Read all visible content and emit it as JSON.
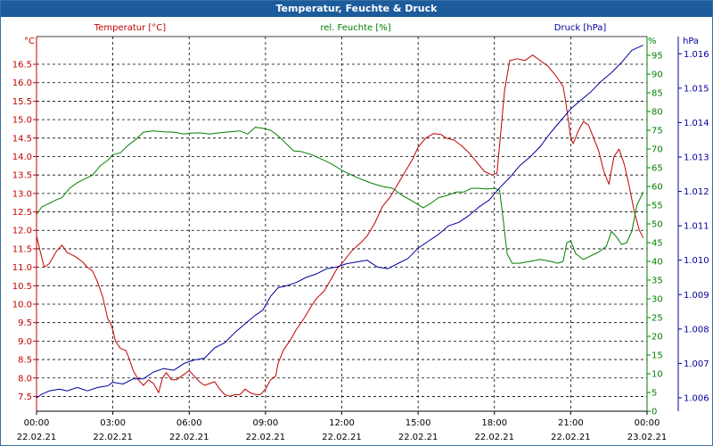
{
  "window": {
    "title": "Temperatur, Feuchte & Druck"
  },
  "chart_data": {
    "type": "line",
    "title": "Temperatur, Feuchte & Druck",
    "grid": true,
    "legend_position": "top",
    "x_ticks": [
      {
        "time": "00:00",
        "date": "22.02.21"
      },
      {
        "time": "03:00",
        "date": "22.02.21"
      },
      {
        "time": "06:00",
        "date": "22.02.21"
      },
      {
        "time": "09:00",
        "date": "22.02.21"
      },
      {
        "time": "12:00",
        "date": "22.02.21"
      },
      {
        "time": "15:00",
        "date": "22.02.21"
      },
      {
        "time": "18:00",
        "date": "22.02.21"
      },
      {
        "time": "21:00",
        "date": "22.02.21"
      },
      {
        "time": "00:00",
        "date": "23.02.21"
      }
    ],
    "x_unit": "hours",
    "xlim": [
      0,
      24
    ],
    "axes": {
      "temperature": {
        "unit_label": "°C",
        "ylim": [
          7.1,
          17.25
        ],
        "ticks": [
          "7.5",
          "8.0",
          "8.5",
          "9.0",
          "9.5",
          "10.0",
          "10.5",
          "11.0",
          "11.5",
          "12.0",
          "12.5",
          "13.0",
          "13.5",
          "14.0",
          "14.5",
          "15.0",
          "15.5",
          "16.0",
          "16.5"
        ],
        "color": "#c00000"
      },
      "humidity": {
        "unit_label": "%",
        "ylim": [
          0,
          100
        ],
        "ticks": [
          "0",
          "5",
          "10",
          "15",
          "20",
          "25",
          "30",
          "35",
          "40",
          "45",
          "50",
          "55",
          "60",
          "65",
          "70",
          "75",
          "80",
          "85",
          "90",
          "95"
        ],
        "color": "#008000"
      },
      "pressure": {
        "unit_label": "hPa",
        "ylim": [
          1005.61,
          1016.5
        ],
        "ticks": [
          "1.006",
          "1.007",
          "1.008",
          "1.009",
          "1.010",
          "1.011",
          "1.012",
          "1.013",
          "1.014",
          "1.015",
          "1.016"
        ],
        "color": "#00009c"
      }
    },
    "series": [
      {
        "name": "Temperatur [°C]",
        "axis": "temperature",
        "color": "#c00000",
        "points": [
          [
            0,
            11.85
          ],
          [
            0.1,
            11.55
          ],
          [
            0.3,
            11.0
          ],
          [
            0.5,
            11.1
          ],
          [
            0.8,
            11.45
          ],
          [
            1.0,
            11.6
          ],
          [
            1.2,
            11.4
          ],
          [
            1.5,
            11.3
          ],
          [
            1.8,
            11.15
          ],
          [
            2.0,
            11.0
          ],
          [
            2.2,
            10.9
          ],
          [
            2.4,
            10.6
          ],
          [
            2.6,
            10.2
          ],
          [
            2.8,
            9.6
          ],
          [
            2.9,
            9.5
          ],
          [
            3.0,
            9.3
          ],
          [
            3.1,
            9.0
          ],
          [
            3.3,
            8.8
          ],
          [
            3.5,
            8.75
          ],
          [
            3.6,
            8.6
          ],
          [
            3.8,
            8.2
          ],
          [
            4.0,
            7.95
          ],
          [
            4.2,
            7.8
          ],
          [
            4.4,
            7.95
          ],
          [
            4.6,
            7.85
          ],
          [
            4.8,
            7.6
          ],
          [
            4.95,
            8.0
          ],
          [
            5.1,
            8.15
          ],
          [
            5.3,
            7.95
          ],
          [
            5.5,
            7.95
          ],
          [
            5.7,
            8.05
          ],
          [
            5.9,
            8.15
          ],
          [
            6.0,
            8.2
          ],
          [
            6.2,
            8.05
          ],
          [
            6.4,
            7.9
          ],
          [
            6.6,
            7.8
          ],
          [
            6.8,
            7.85
          ],
          [
            7.0,
            7.9
          ],
          [
            7.2,
            7.7
          ],
          [
            7.4,
            7.55
          ],
          [
            7.6,
            7.5
          ],
          [
            7.8,
            7.55
          ],
          [
            8.0,
            7.55
          ],
          [
            8.2,
            7.7
          ],
          [
            8.4,
            7.6
          ],
          [
            8.6,
            7.55
          ],
          [
            8.8,
            7.55
          ],
          [
            9.0,
            7.7
          ],
          [
            9.2,
            7.95
          ],
          [
            9.4,
            8.05
          ],
          [
            9.5,
            8.4
          ],
          [
            9.7,
            8.75
          ],
          [
            10.0,
            9.05
          ],
          [
            10.2,
            9.3
          ],
          [
            10.5,
            9.6
          ],
          [
            10.8,
            9.95
          ],
          [
            11.0,
            10.15
          ],
          [
            11.3,
            10.35
          ],
          [
            11.6,
            10.7
          ],
          [
            11.8,
            10.95
          ],
          [
            12.0,
            11.1
          ],
          [
            12.4,
            11.45
          ],
          [
            12.8,
            11.7
          ],
          [
            13.0,
            11.85
          ],
          [
            13.3,
            12.2
          ],
          [
            13.6,
            12.65
          ],
          [
            13.9,
            12.9
          ],
          [
            14.2,
            13.25
          ],
          [
            14.5,
            13.6
          ],
          [
            14.8,
            13.95
          ],
          [
            15.0,
            14.25
          ],
          [
            15.3,
            14.5
          ],
          [
            15.6,
            14.62
          ],
          [
            15.9,
            14.6
          ],
          [
            16.1,
            14.5
          ],
          [
            16.4,
            14.45
          ],
          [
            16.7,
            14.3
          ],
          [
            17.0,
            14.1
          ],
          [
            17.3,
            13.85
          ],
          [
            17.6,
            13.6
          ],
          [
            17.9,
            13.5
          ],
          [
            18.1,
            13.55
          ],
          [
            18.2,
            14.3
          ],
          [
            18.4,
            15.8
          ],
          [
            18.6,
            16.6
          ],
          [
            18.9,
            16.65
          ],
          [
            19.2,
            16.6
          ],
          [
            19.5,
            16.75
          ],
          [
            19.8,
            16.6
          ],
          [
            20.1,
            16.45
          ],
          [
            20.4,
            16.2
          ],
          [
            20.7,
            15.9
          ],
          [
            20.8,
            15.5
          ],
          [
            21.0,
            14.5
          ],
          [
            21.1,
            14.35
          ],
          [
            21.3,
            14.7
          ],
          [
            21.5,
            14.95
          ],
          [
            21.7,
            14.85
          ],
          [
            21.9,
            14.5
          ],
          [
            22.1,
            14.15
          ],
          [
            22.3,
            13.6
          ],
          [
            22.5,
            13.25
          ],
          [
            22.7,
            14.0
          ],
          [
            22.9,
            14.2
          ],
          [
            23.1,
            13.8
          ],
          [
            23.3,
            13.2
          ],
          [
            23.5,
            12.5
          ],
          [
            23.7,
            12.0
          ],
          [
            23.85,
            11.8
          ]
        ]
      },
      {
        "name": "rel. Feuchte [%]",
        "axis": "humidity",
        "color": "#008000",
        "points": [
          [
            0,
            52.5
          ],
          [
            0.2,
            54.5
          ],
          [
            0.5,
            55.5
          ],
          [
            0.8,
            56.5
          ],
          [
            1.0,
            57.0
          ],
          [
            1.3,
            59.5
          ],
          [
            1.6,
            61.0
          ],
          [
            1.9,
            62.0
          ],
          [
            2.2,
            63.0
          ],
          [
            2.5,
            65.5
          ],
          [
            2.8,
            67.0
          ],
          [
            3.0,
            68.5
          ],
          [
            3.3,
            69.0
          ],
          [
            3.6,
            71.0
          ],
          [
            3.9,
            72.5
          ],
          [
            4.2,
            74.5
          ],
          [
            4.6,
            74.8
          ],
          [
            5.0,
            74.6
          ],
          [
            5.4,
            74.5
          ],
          [
            5.8,
            74.0
          ],
          [
            6.0,
            74.2
          ],
          [
            6.4,
            74.3
          ],
          [
            6.8,
            74.0
          ],
          [
            7.2,
            74.3
          ],
          [
            7.6,
            74.6
          ],
          [
            8.0,
            74.8
          ],
          [
            8.3,
            74.0
          ],
          [
            8.6,
            75.8
          ],
          [
            8.9,
            75.5
          ],
          [
            9.2,
            75.0
          ],
          [
            9.5,
            73.5
          ],
          [
            9.8,
            71.5
          ],
          [
            10.1,
            69.5
          ],
          [
            10.4,
            69.3
          ],
          [
            10.8,
            68.5
          ],
          [
            11.2,
            67.3
          ],
          [
            11.6,
            66.0
          ],
          [
            12.0,
            64.3
          ],
          [
            12.4,
            63.0
          ],
          [
            12.8,
            61.8
          ],
          [
            13.2,
            60.8
          ],
          [
            13.6,
            60.0
          ],
          [
            14.0,
            59.5
          ],
          [
            14.4,
            57.5
          ],
          [
            14.8,
            56.0
          ],
          [
            15.2,
            54.3
          ],
          [
            15.5,
            55.5
          ],
          [
            15.8,
            57.0
          ],
          [
            16.1,
            57.5
          ],
          [
            16.5,
            58.5
          ],
          [
            16.8,
            58.5
          ],
          [
            17.1,
            59.5
          ],
          [
            17.4,
            59.5
          ],
          [
            17.7,
            59.3
          ],
          [
            18.0,
            59.5
          ],
          [
            18.2,
            59.0
          ],
          [
            18.35,
            51.0
          ],
          [
            18.5,
            42.0
          ],
          [
            18.7,
            39.5
          ],
          [
            19.0,
            39.5
          ],
          [
            19.4,
            40.0
          ],
          [
            19.8,
            40.5
          ],
          [
            20.2,
            40.0
          ],
          [
            20.5,
            39.5
          ],
          [
            20.7,
            40.0
          ],
          [
            20.85,
            45.0
          ],
          [
            21.0,
            45.5
          ],
          [
            21.2,
            42.0
          ],
          [
            21.5,
            40.5
          ],
          [
            21.8,
            41.5
          ],
          [
            22.1,
            42.5
          ],
          [
            22.4,
            44.0
          ],
          [
            22.6,
            48.0
          ],
          [
            22.8,
            46.5
          ],
          [
            23.0,
            44.5
          ],
          [
            23.2,
            45.0
          ],
          [
            23.4,
            48.0
          ],
          [
            23.6,
            55.0
          ],
          [
            23.85,
            58.5
          ]
        ]
      },
      {
        "name": "Druck [hPa]",
        "axis": "pressure",
        "color": "#00009c",
        "points": [
          [
            0,
            1006.0
          ],
          [
            0.2,
            1006.1
          ],
          [
            0.5,
            1006.2
          ],
          [
            0.9,
            1006.25
          ],
          [
            1.2,
            1006.2
          ],
          [
            1.6,
            1006.3
          ],
          [
            2.0,
            1006.2
          ],
          [
            2.4,
            1006.3
          ],
          [
            2.8,
            1006.35
          ],
          [
            3.0,
            1006.45
          ],
          [
            3.4,
            1006.4
          ],
          [
            3.8,
            1006.55
          ],
          [
            4.2,
            1006.55
          ],
          [
            4.6,
            1006.75
          ],
          [
            5.0,
            1006.85
          ],
          [
            5.4,
            1006.8
          ],
          [
            5.8,
            1007.0
          ],
          [
            6.2,
            1007.1
          ],
          [
            6.6,
            1007.15
          ],
          [
            7.0,
            1007.45
          ],
          [
            7.4,
            1007.6
          ],
          [
            7.8,
            1007.9
          ],
          [
            8.2,
            1008.15
          ],
          [
            8.6,
            1008.4
          ],
          [
            8.9,
            1008.55
          ],
          [
            9.2,
            1008.95
          ],
          [
            9.5,
            1009.2
          ],
          [
            9.8,
            1009.25
          ],
          [
            10.2,
            1009.35
          ],
          [
            10.6,
            1009.5
          ],
          [
            11.0,
            1009.6
          ],
          [
            11.4,
            1009.75
          ],
          [
            11.8,
            1009.8
          ],
          [
            12.2,
            1009.9
          ],
          [
            12.6,
            1009.95
          ],
          [
            13.0,
            1010.0
          ],
          [
            13.4,
            1009.8
          ],
          [
            13.8,
            1009.75
          ],
          [
            14.2,
            1009.9
          ],
          [
            14.6,
            1010.05
          ],
          [
            15.0,
            1010.35
          ],
          [
            15.4,
            1010.55
          ],
          [
            15.8,
            1010.75
          ],
          [
            16.2,
            1011.0
          ],
          [
            16.6,
            1011.1
          ],
          [
            17.0,
            1011.3
          ],
          [
            17.4,
            1011.55
          ],
          [
            17.8,
            1011.75
          ],
          [
            18.2,
            1012.1
          ],
          [
            18.6,
            1012.4
          ],
          [
            19.0,
            1012.75
          ],
          [
            19.4,
            1013.0
          ],
          [
            19.8,
            1013.3
          ],
          [
            20.2,
            1013.7
          ],
          [
            20.6,
            1014.05
          ],
          [
            21.0,
            1014.4
          ],
          [
            21.4,
            1014.65
          ],
          [
            21.8,
            1014.9
          ],
          [
            22.2,
            1015.2
          ],
          [
            22.6,
            1015.45
          ],
          [
            23.0,
            1015.75
          ],
          [
            23.4,
            1016.1
          ],
          [
            23.85,
            1016.25
          ]
        ]
      }
    ]
  }
}
